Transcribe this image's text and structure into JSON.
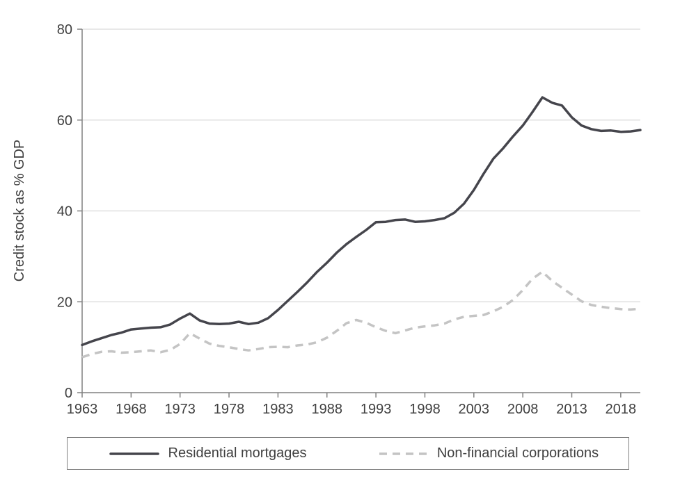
{
  "chart_data": {
    "type": "line",
    "title": "",
    "xlabel": "",
    "ylabel": "Credit stock as % GDP",
    "ylim": [
      0,
      80
    ],
    "yticks": [
      0,
      20,
      40,
      60,
      80
    ],
    "xticks": [
      1963,
      1968,
      1973,
      1978,
      1983,
      1988,
      1993,
      1998,
      2003,
      2008,
      2013,
      2018
    ],
    "grid": true,
    "legend_position": "bottom",
    "colors": {
      "grid": "#d9d9d9",
      "axis": "#808080",
      "text": "#404040",
      "background": "#ffffff"
    },
    "x": [
      1963,
      1964,
      1965,
      1966,
      1967,
      1968,
      1969,
      1970,
      1971,
      1972,
      1973,
      1974,
      1975,
      1976,
      1977,
      1978,
      1979,
      1980,
      1981,
      1982,
      1983,
      1984,
      1985,
      1986,
      1987,
      1988,
      1989,
      1990,
      1991,
      1992,
      1993,
      1994,
      1995,
      1996,
      1997,
      1998,
      1999,
      2000,
      2001,
      2002,
      2003,
      2004,
      2005,
      2006,
      2007,
      2008,
      2009,
      2010,
      2011,
      2012,
      2013,
      2014,
      2015,
      2016,
      2017,
      2018,
      2019,
      2020
    ],
    "series": [
      {
        "name": "Residential mortgages",
        "color": "#45454c",
        "dash": null,
        "width": 3.5,
        "values": [
          10.5,
          11.3,
          12.0,
          12.7,
          13.2,
          13.9,
          14.1,
          14.3,
          14.4,
          15.0,
          16.3,
          17.4,
          15.9,
          15.2,
          15.1,
          15.2,
          15.6,
          15.1,
          15.4,
          16.4,
          18.2,
          20.2,
          22.2,
          24.3,
          26.6,
          28.6,
          30.8,
          32.7,
          34.3,
          35.8,
          37.5,
          37.6,
          38.0,
          38.1,
          37.6,
          37.7,
          38.0,
          38.4,
          39.6,
          41.6,
          44.6,
          48.2,
          51.5,
          53.8,
          56.4,
          58.8,
          61.8,
          65.0,
          63.8,
          63.2,
          60.6,
          58.8,
          58.0,
          57.6,
          57.7,
          57.4,
          57.5,
          57.8
        ]
      },
      {
        "name": "Non-financial corporations",
        "color": "#c4c4c4",
        "dash": "11 8",
        "width": 3.5,
        "values": [
          7.8,
          8.5,
          9.0,
          9.1,
          8.8,
          8.9,
          9.1,
          9.3,
          8.9,
          9.4,
          10.7,
          13.1,
          11.9,
          10.8,
          10.3,
          10.0,
          9.6,
          9.3,
          9.6,
          10.0,
          10.1,
          10.0,
          10.4,
          10.6,
          11.1,
          12.1,
          13.6,
          15.3,
          16.0,
          15.4,
          14.4,
          13.6,
          13.1,
          13.7,
          14.3,
          14.6,
          14.8,
          15.2,
          16.1,
          16.7,
          16.9,
          17.1,
          17.9,
          18.9,
          20.4,
          22.6,
          25.1,
          26.6,
          24.6,
          23.1,
          21.6,
          20.1,
          19.3,
          18.9,
          18.6,
          18.4,
          18.3,
          18.5
        ]
      }
    ]
  }
}
